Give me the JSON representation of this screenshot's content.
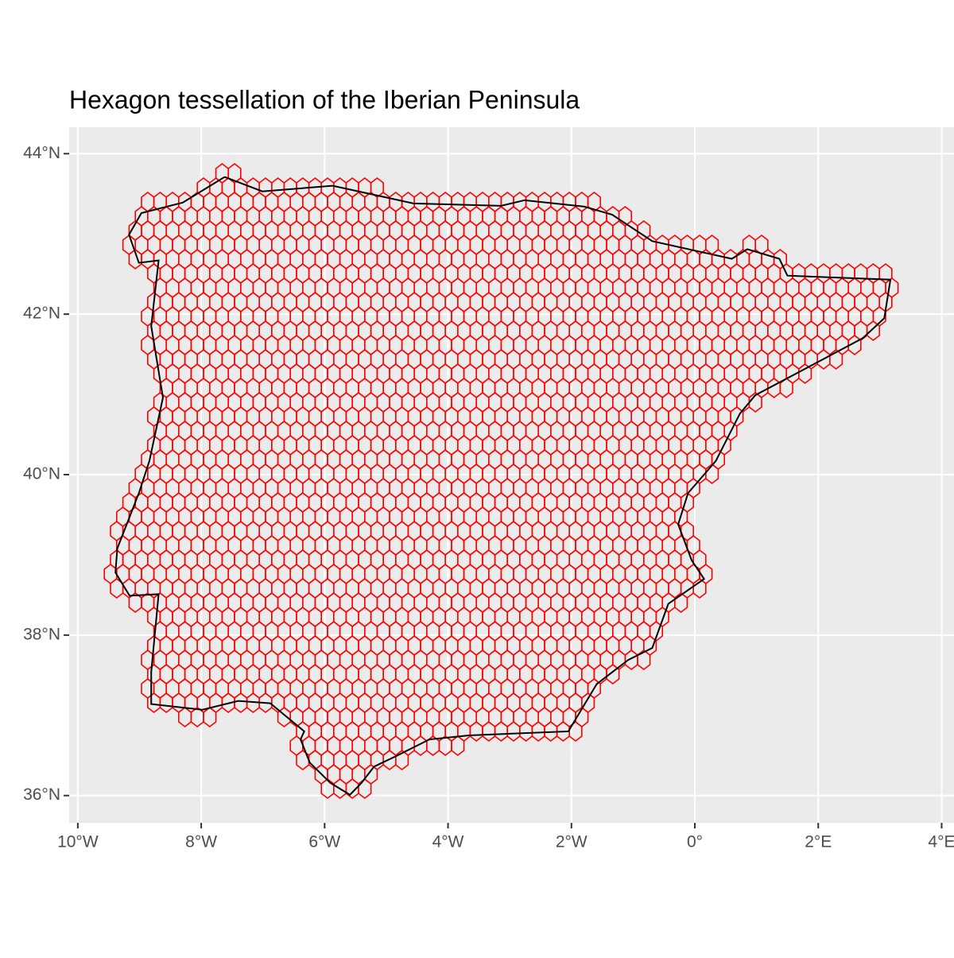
{
  "chart_data": {
    "type": "map",
    "title": "Hexagon tessellation of the Iberian Peninsula",
    "xlim": [
      -10.14,
      4.2
    ],
    "ylim": [
      35.66,
      44.33
    ],
    "xticks": [
      {
        "value": -10,
        "label": "10°W"
      },
      {
        "value": -8,
        "label": "8°W"
      },
      {
        "value": -6,
        "label": "6°W"
      },
      {
        "value": -4,
        "label": "4°W"
      },
      {
        "value": -2,
        "label": "2°W"
      },
      {
        "value": 0,
        "label": "0°"
      },
      {
        "value": 2,
        "label": "2°E"
      },
      {
        "value": 4,
        "label": "4°E"
      }
    ],
    "yticks": [
      {
        "value": 36,
        "label": "36°N"
      },
      {
        "value": 38,
        "label": "38°N"
      },
      {
        "value": 40,
        "label": "40°N"
      },
      {
        "value": 42,
        "label": "42°N"
      },
      {
        "value": 44,
        "label": "44°N"
      }
    ],
    "grid": true,
    "hex_color": "#ff0000",
    "outline_color": "#000000",
    "outline": {
      "lon": [
        -7.62,
        -7.01,
        -5.87,
        -4.56,
        -3.14,
        -2.76,
        -1.79,
        -1.34,
        -0.69,
        0.6,
        0.85,
        1.37,
        1.5,
        3.17,
        3.07,
        2.72,
        0.98,
        0.73,
        0.34,
        -0.11,
        -0.27,
        -0.05,
        0.15,
        -0.43,
        -0.69,
        -1.08,
        -1.59,
        -2.05,
        -3.66,
        -4.3,
        -4.82,
        -5.2,
        -5.4,
        -5.59,
        -5.91,
        -6.24,
        -6.39,
        -6.33,
        -6.88,
        -7.4,
        -7.98,
        -8.81,
        -8.81,
        -8.69,
        -9.16,
        -9.39,
        -9.36,
        -9.01,
        -8.84,
        -8.62,
        -8.81,
        -8.69,
        -9.01,
        -9.17,
        -8.97,
        -8.3,
        -7.62
      ],
      "lat": [
        43.71,
        43.53,
        43.6,
        43.38,
        43.35,
        43.42,
        43.34,
        43.24,
        42.91,
        42.69,
        42.81,
        42.69,
        42.48,
        42.43,
        41.95,
        41.7,
        40.99,
        40.76,
        40.17,
        39.77,
        39.38,
        38.93,
        38.7,
        38.39,
        37.84,
        37.69,
        37.39,
        36.8,
        36.75,
        36.7,
        36.5,
        36.36,
        36.16,
        36.01,
        36.16,
        36.41,
        36.7,
        36.8,
        37.15,
        37.18,
        37.07,
        37.14,
        37.54,
        38.51,
        38.49,
        38.78,
        39.08,
        39.77,
        40.17,
        40.96,
        41.85,
        42.67,
        42.64,
        42.99,
        43.26,
        43.39,
        43.71
      ]
    }
  }
}
